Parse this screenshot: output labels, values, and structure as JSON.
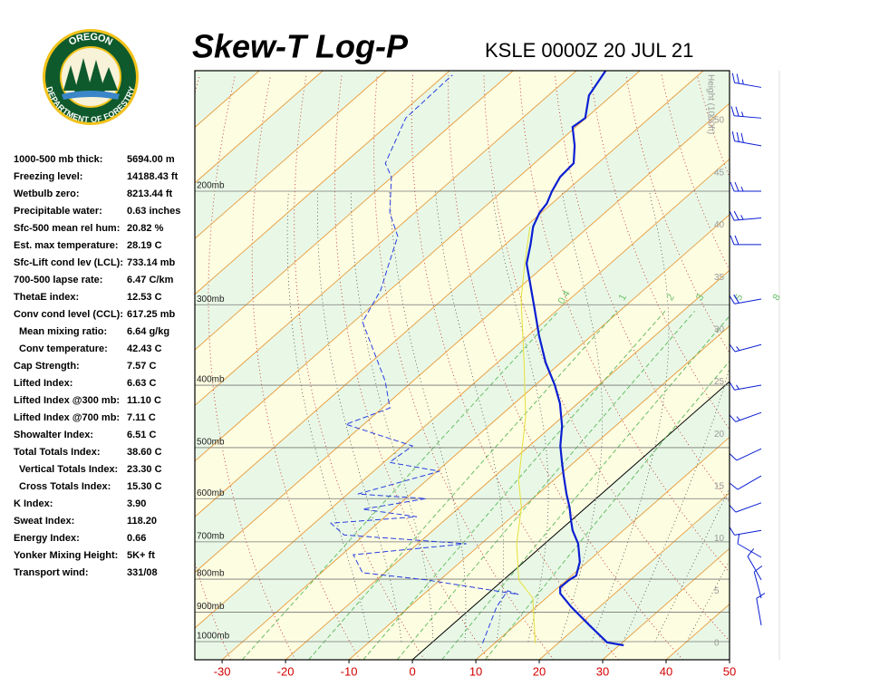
{
  "logo": {
    "top": "OREGON",
    "bottom": "DEPARTMENT OF FORESTRY"
  },
  "indices": [
    [
      "1000-500 mb thick:",
      "5694.00 m"
    ],
    [
      "Freezing level:",
      "14188.43 ft"
    ],
    [
      "Wetbulb zero:",
      "8213.44 ft"
    ],
    [
      "Precipitable water:",
      "0.63 inches"
    ],
    [
      "Sfc-500 mean rel hum:",
      "20.82 %"
    ],
    [
      "Est. max temperature:",
      "28.19 C"
    ],
    [
      "Sfc-Lift cond lev (LCL):",
      "733.14 mb"
    ],
    [
      "700-500 lapse rate:",
      "6.47 C/km"
    ],
    [
      "ThetaE index:",
      "12.53 C"
    ],
    [
      "Conv cond level (CCL):",
      "617.25 mb"
    ],
    [
      "Mean mixing ratio:",
      "6.64 g/kg"
    ],
    [
      "Conv temperature:",
      "42.43 C"
    ],
    [
      "Cap Strength:",
      "7.57 C"
    ],
    [
      "Lifted Index:",
      "6.63 C"
    ],
    [
      "Lifted Index @300 mb:",
      "11.10 C"
    ],
    [
      "Lifted Index @700 mb:",
      "7.11 C"
    ],
    [
      "Showalter Index:",
      "6.51 C"
    ],
    [
      "Total Totals Index:",
      "38.60 C"
    ],
    [
      "Vertical Totals Index:",
      "23.30 C"
    ],
    [
      "Cross Totals Index:",
      "15.30 C"
    ],
    [
      "K Index:",
      "3.90"
    ],
    [
      "Sweat Index:",
      "118.20"
    ],
    [
      "Energy Index:",
      "0.66"
    ],
    [
      "Yonker Mixing Height:",
      "5K+ ft"
    ],
    [
      "Transport wind:",
      "331/08"
    ]
  ],
  "chart_data": {
    "type": "skew-t",
    "title": "Skew-T Log-P",
    "subtitle": "KSLE 0000Z 20 JUL 21",
    "xlim": [
      -34.3,
      50
    ],
    "xticks": [
      -30,
      -20,
      -10,
      0,
      10,
      20,
      30,
      40,
      50
    ],
    "ylim": [
      1067,
      130
    ],
    "log_y": true,
    "yticks": [
      {
        "value": 200,
        "label": "200mb"
      },
      {
        "value": 300,
        "label": "300mb"
      },
      {
        "value": 400,
        "label": "400mb"
      },
      {
        "value": 500,
        "label": "500mb"
      },
      {
        "value": 600,
        "label": "600mb"
      },
      {
        "value": 700,
        "label": "700mb"
      },
      {
        "value": 800,
        "label": "800mb"
      },
      {
        "value": 900,
        "label": "900mb"
      },
      {
        "value": 1000,
        "label": "1000mb"
      }
    ],
    "height_label": "Height (1000ft)",
    "heightlim": [
      -1.56,
      54.77
    ],
    "heightticks": [
      0,
      5,
      10,
      15,
      20,
      25,
      30,
      35,
      40,
      45,
      50
    ],
    "mixing_ratios": [
      0.4,
      1,
      2,
      3,
      5,
      8
    ],
    "series": [
      {
        "color": "#0a1ed2",
        "style": "solid",
        "pressure": [
          1013,
          1003,
          943,
          884,
          842,
          824,
          802,
          790,
          752,
          705,
          672,
          650,
          619,
          590,
          553,
          527,
          497,
          463,
          427,
          400,
          369,
          335,
          304,
          276,
          259,
          242,
          227,
          216,
          209,
          200,
          190,
          181,
          170,
          159,
          154,
          142,
          130
        ],
        "values": [
          30.7,
          27.6,
          21.7,
          15.6,
          11.4,
          10.3,
          10.4,
          10.7,
          8.8,
          5.3,
          2.0,
          0.1,
          -2.6,
          -5.5,
          -9.2,
          -11.9,
          -15.1,
          -18.4,
          -22.8,
          -26.9,
          -32.4,
          -38.3,
          -43.9,
          -49.5,
          -53.2,
          -56.0,
          -58.8,
          -60.3,
          -60.8,
          -62.2,
          -63.5,
          -63.8,
          -66.8,
          -70.5,
          -70.1,
          -73.6,
          -75.4
        ]
      },
      {
        "color": "#2a3ee0",
        "style": "dashed",
        "pressure": [
          1006,
          884,
          834,
          845,
          802,
          782,
          733,
          705,
          683,
          655,
          640,
          623,
          600,
          590,
          544,
          527,
          497,
          460,
          434,
          394,
          319,
          285,
          259,
          235,
          216,
          190,
          181,
          154,
          132
        ],
        "values": [
          8.1,
          3.8,
          2.6,
          5.0,
          -12.2,
          -23.5,
          -28.2,
          -12.3,
          -33.2,
          -37.4,
          -25.0,
          -34.9,
          -26.8,
          -38.4,
          -29.6,
          -39.1,
          -38.4,
          -52.8,
          -48.8,
          -54.4,
          -68.6,
          -71.4,
          -74.9,
          -78.4,
          -83.9,
          -90.1,
          -93.5,
          -98.4,
          -98.8
        ]
      },
      {
        "color": "#e6e03a",
        "style": "solid",
        "pressure": [
          1006,
          856,
          802,
          705,
          619,
          562,
          448,
          369,
          294,
          259,
          227
        ],
        "values": [
          16.4,
          7.9,
          2.4,
          -4.4,
          -10.2,
          -15.5,
          -25.8,
          -35.8,
          -47.7,
          -53.5,
          -59.3
        ]
      }
    ],
    "winds": {
      "color": "#0a1ed2",
      "pressure": [
        138,
        154,
        170,
        200,
        220,
        242,
        294,
        346,
        400,
        441,
        502,
        553,
        609,
        672,
        740,
        802,
        856,
        943
      ],
      "direction": [
        280,
        275,
        280,
        270,
        265,
        270,
        260,
        255,
        260,
        250,
        245,
        240,
        250,
        260,
        300,
        330,
        345,
        350
      ],
      "speed": [
        25,
        25,
        30,
        25,
        25,
        20,
        20,
        15,
        15,
        15,
        10,
        10,
        10,
        10,
        10,
        10,
        10,
        10
      ]
    }
  }
}
